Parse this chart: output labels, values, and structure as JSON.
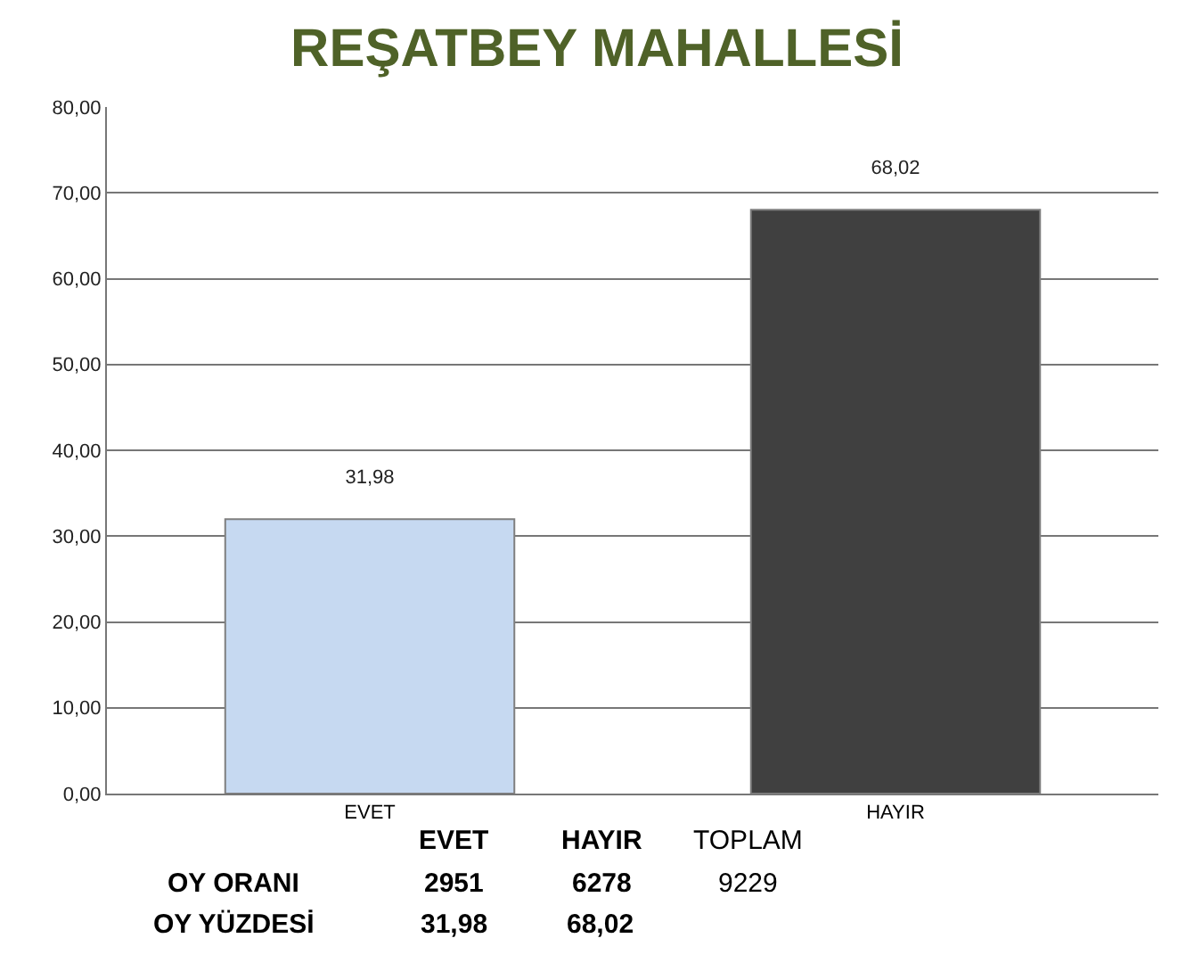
{
  "chart_data": {
    "type": "bar",
    "title": "REŞATBEY MAHALLESİ",
    "categories": [
      "EVET",
      "HAYIR"
    ],
    "values": [
      31.98,
      68.02
    ],
    "colors": [
      "#c6d9f1",
      "#404040"
    ],
    "ylim": [
      0,
      80
    ],
    "yticks": [
      {
        "value": 0,
        "label": "0,00"
      },
      {
        "value": 10,
        "label": "10,00"
      },
      {
        "value": 20,
        "label": "20,00"
      },
      {
        "value": 30,
        "label": "30,00"
      },
      {
        "value": 40,
        "label": "40,00"
      },
      {
        "value": 50,
        "label": "50,00"
      },
      {
        "value": 60,
        "label": "60,00"
      },
      {
        "value": 70,
        "label": "70,00"
      },
      {
        "value": 80,
        "label": "80,00"
      }
    ],
    "value_labels": [
      "31,98",
      "68,02"
    ],
    "grid": "y",
    "annotations": [
      "EVET",
      "HAYIR",
      "TOPLAM",
      "OY ORANI",
      "2951",
      "6278",
      "9229",
      "OY YÜZDESİ",
      "31,98",
      "68,02"
    ]
  }
}
